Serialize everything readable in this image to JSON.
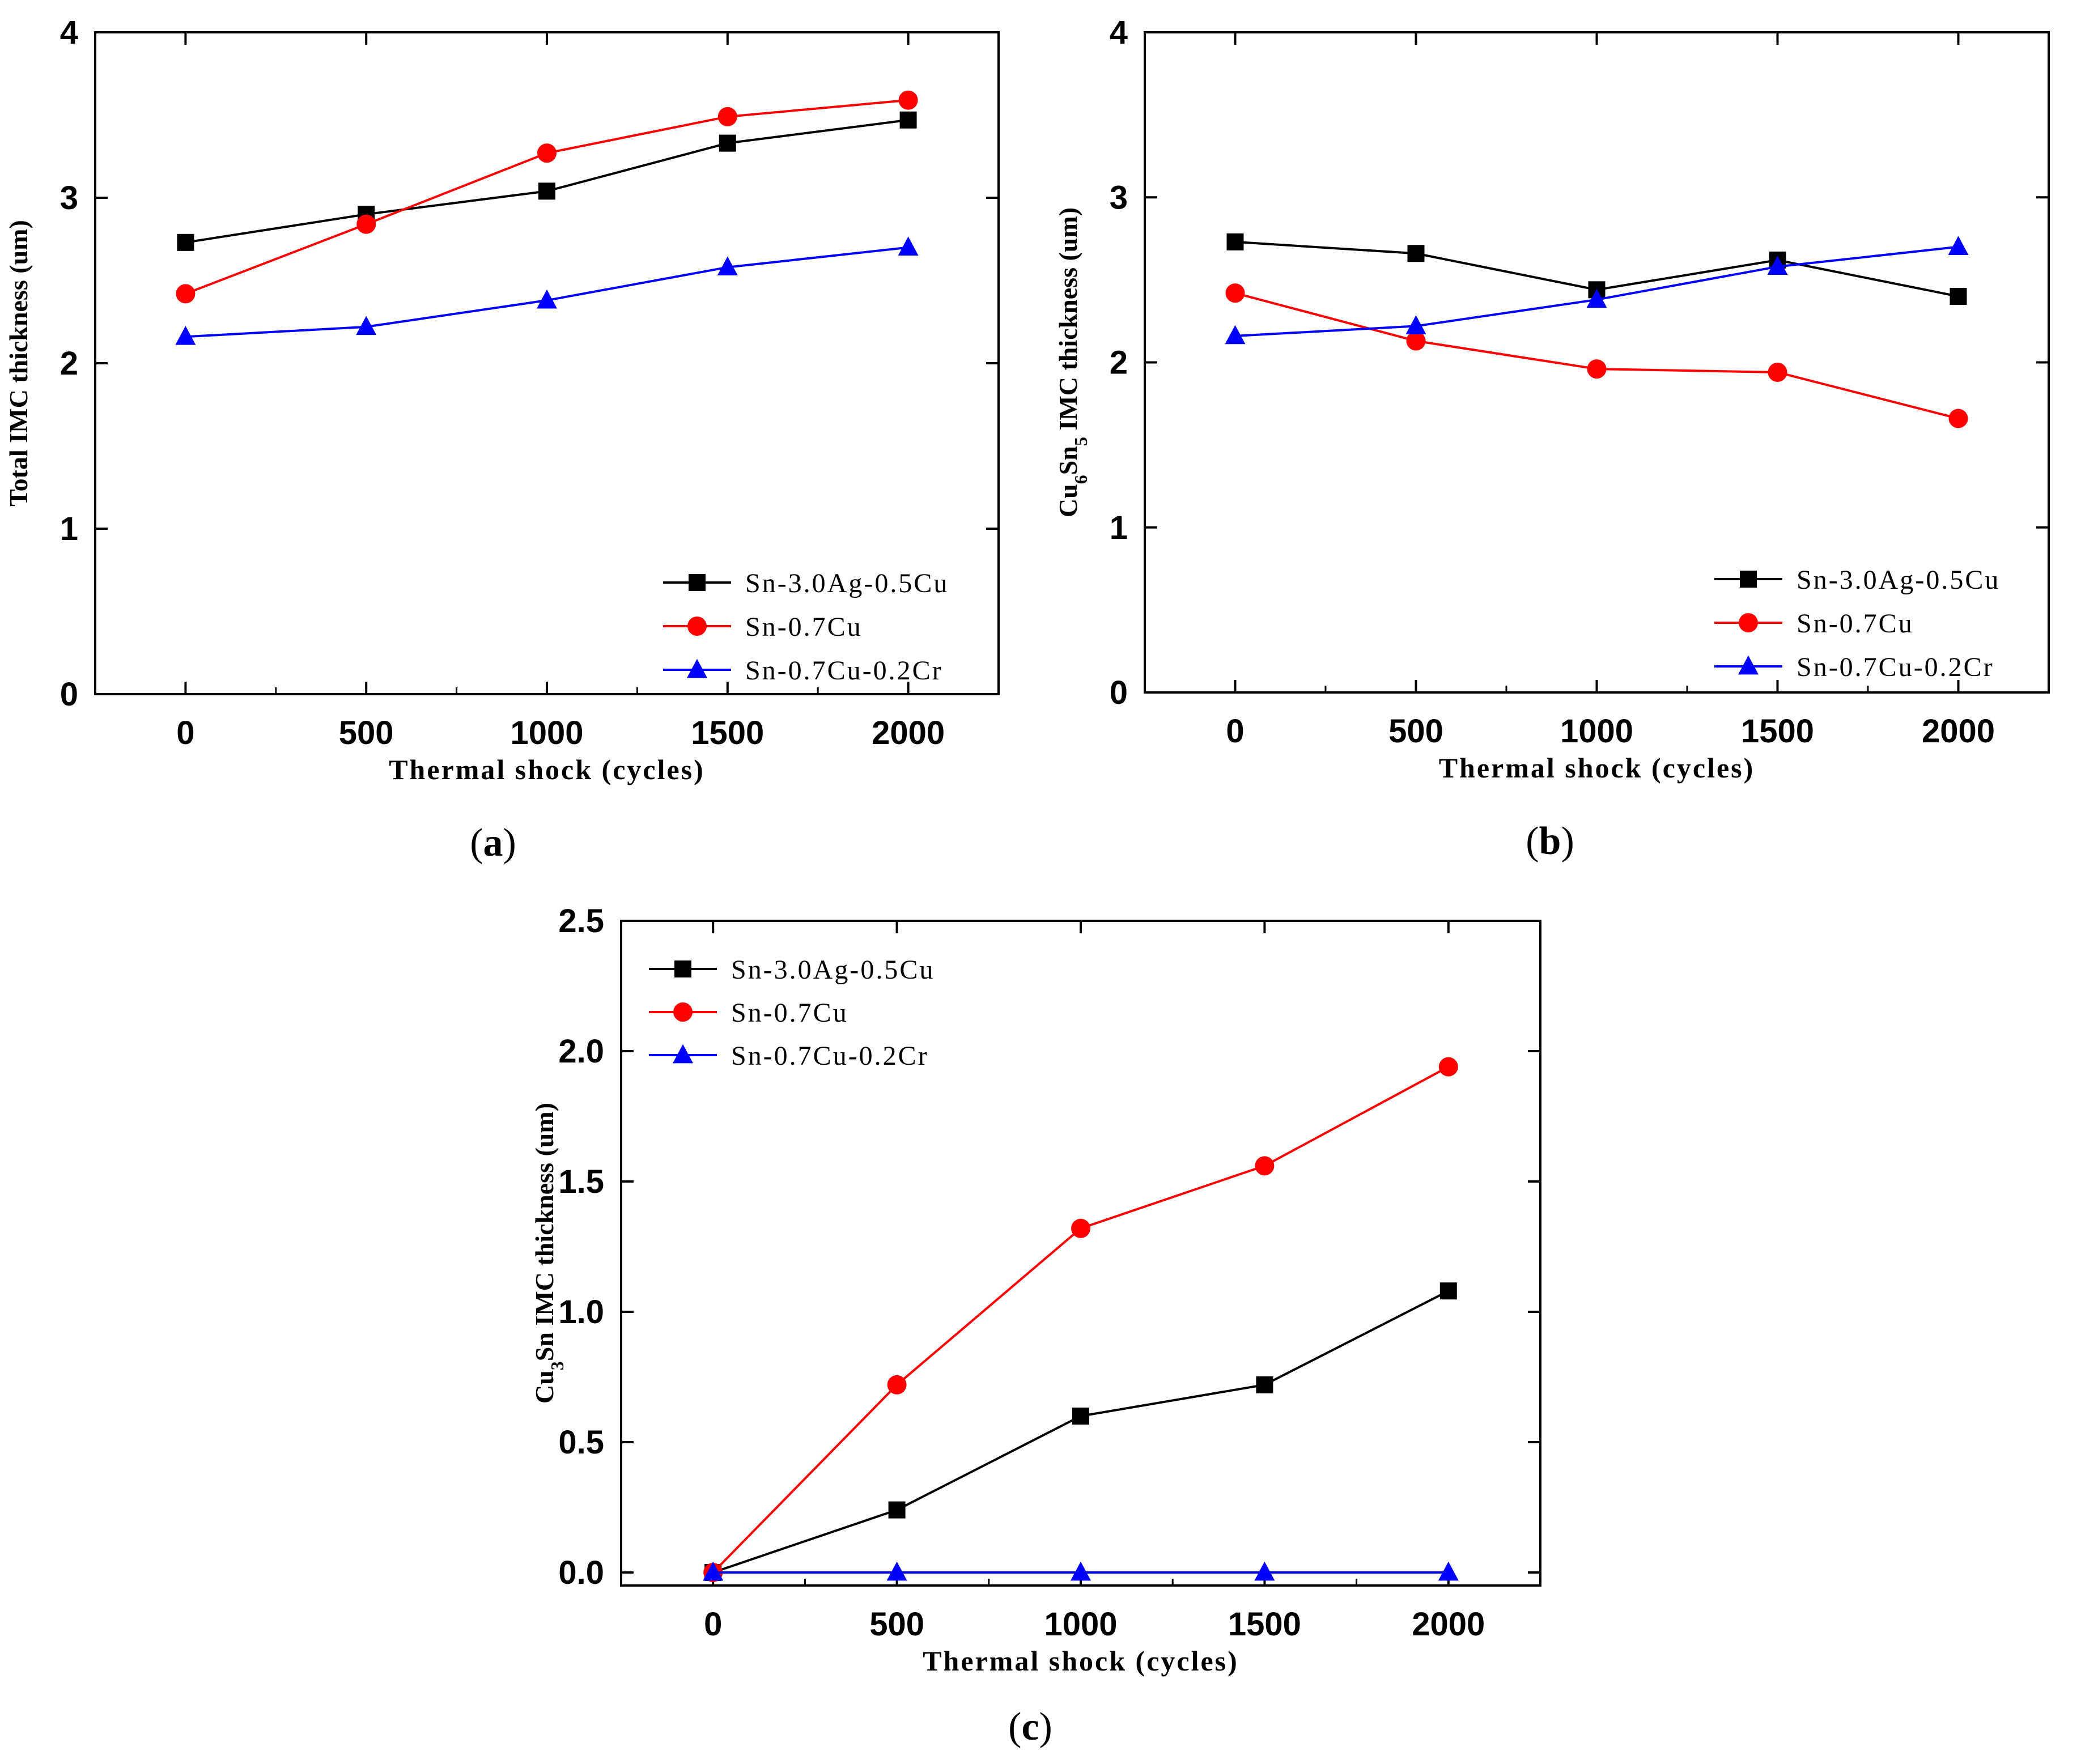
{
  "chart_data": [
    {
      "panel": "(a)",
      "type": "line",
      "xlabel": "Thermal shock (cycles)",
      "ylabel_parts": [
        {
          "t": "Total IMC thickness (um)"
        }
      ],
      "x": [
        0,
        500,
        1000,
        1500,
        2000
      ],
      "xticks": [
        "0",
        "500",
        "1000",
        "1500",
        "2000"
      ],
      "yticks": [
        "0",
        "1",
        "2",
        "3",
        "4"
      ],
      "xlim": [
        -250,
        2250
      ],
      "ylim": [
        0,
        4
      ],
      "grid": false,
      "legend_position": "bottom-right",
      "series": [
        {
          "name": "Sn-3.0Ag-0.5Cu",
          "color": "#000000",
          "marker": "square",
          "values": [
            2.73,
            2.9,
            3.04,
            3.33,
            3.47
          ]
        },
        {
          "name": "Sn-0.7Cu",
          "color": "#ff0000",
          "marker": "circle",
          "values": [
            2.42,
            2.84,
            3.27,
            3.49,
            3.59
          ]
        },
        {
          "name": "Sn-0.7Cu-0.2Cr",
          "color": "#0000ff",
          "marker": "triangle",
          "values": [
            2.16,
            2.22,
            2.38,
            2.58,
            2.7
          ]
        }
      ]
    },
    {
      "panel": "(b)",
      "type": "line",
      "xlabel": "Thermal shock (cycles)",
      "ylabel_parts": [
        {
          "t": "Cu"
        },
        {
          "t": "6",
          "sub": true
        },
        {
          "t": "Sn"
        },
        {
          "t": "5",
          "sub": true
        },
        {
          "t": " IMC thickness (um)"
        }
      ],
      "x": [
        0,
        500,
        1000,
        1500,
        2000
      ],
      "xticks": [
        "0",
        "500",
        "1000",
        "1500",
        "2000"
      ],
      "yticks": [
        "0",
        "1",
        "2",
        "3",
        "4"
      ],
      "xlim": [
        -250,
        2250
      ],
      "ylim": [
        0,
        4
      ],
      "grid": false,
      "legend_position": "bottom-right",
      "series": [
        {
          "name": "Sn-3.0Ag-0.5Cu",
          "color": "#000000",
          "marker": "square",
          "values": [
            2.73,
            2.66,
            2.44,
            2.62,
            2.4
          ]
        },
        {
          "name": "Sn-0.7Cu",
          "color": "#ff0000",
          "marker": "circle",
          "values": [
            2.42,
            2.13,
            1.96,
            1.94,
            1.66
          ]
        },
        {
          "name": "Sn-0.7Cu-0.2Cr",
          "color": "#0000ff",
          "marker": "triangle",
          "values": [
            2.16,
            2.22,
            2.38,
            2.58,
            2.7
          ]
        }
      ]
    },
    {
      "panel": "(c)",
      "type": "line",
      "xlabel": "Thermal shock (cycles)",
      "ylabel_parts": [
        {
          "t": "Cu"
        },
        {
          "t": "3",
          "sub": true
        },
        {
          "t": "Sn IMC thickness (um)"
        }
      ],
      "x": [
        0,
        500,
        1000,
        1500,
        2000
      ],
      "xticks": [
        "0",
        "500",
        "1000",
        "1500",
        "2000"
      ],
      "yticks": [
        "0.0",
        "0.5",
        "1.0",
        "1.5",
        "2.0",
        "2.5"
      ],
      "xlim": [
        -250,
        2250
      ],
      "ylim": [
        -0.05,
        2.5
      ],
      "grid": false,
      "legend_position": "top-left",
      "series": [
        {
          "name": "Sn-3.0Ag-0.5Cu",
          "color": "#000000",
          "marker": "square",
          "values": [
            0,
            0.24,
            0.6,
            0.72,
            1.08
          ]
        },
        {
          "name": "Sn-0.7Cu",
          "color": "#ff0000",
          "marker": "circle",
          "values": [
            0,
            0.72,
            1.32,
            1.56,
            1.94
          ]
        },
        {
          "name": "Sn-0.7Cu-0.2Cr",
          "color": "#0000ff",
          "marker": "triangle",
          "values": [
            0,
            0,
            0,
            0,
            0
          ]
        }
      ]
    }
  ]
}
